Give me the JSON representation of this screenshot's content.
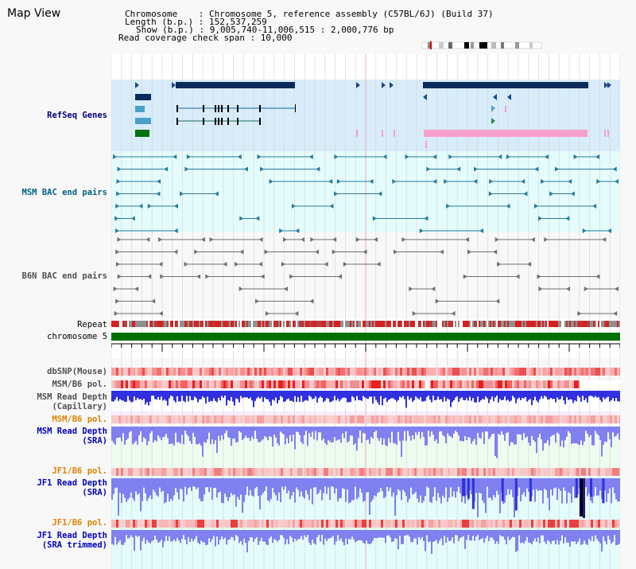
{
  "title": "Map View",
  "header": {
    "chromosome_line": "Chromosome    : Chromosome 5, reference assembly (C57BL/6J) (Build 37)",
    "length_line": "Length (b.p.) : 152,537,259",
    "show_line": "Show (b.p.) : 9,005,740-11,006,515 : 2,000,776 bp",
    "span_line": "Read coverage check span : 10,000"
  },
  "tracks": {
    "refseq": "RefSeq Genes",
    "msm_bac": "MSM BAC end pairs",
    "b6n_bac": "B6N BAC end pairs",
    "repeat": "Repeat",
    "chromosome": "chromosome 5",
    "dbsnp": "dbSNP(Mouse)",
    "msm_b6_pol_1": "MSM/B6 pol.",
    "msm_read_cap_1": "MSM Read Depth",
    "msm_read_cap_2": "(Capillary)",
    "msm_b6_pol_2": "MSM/B6 pol.",
    "msm_read_sra_1": "MSM Read Depth",
    "msm_read_sra_2": "(SRA)",
    "jf1_b6_pol_1": "JF1/B6 pol.",
    "jf1_read_sra_1": "JF1 Read Depth",
    "jf1_read_sra_2": "(SRA)",
    "jf1_b6_pol_2": "JF1/B6 pol.",
    "jf1_trim_1": "JF1 Read Depth",
    "jf1_trim_2": "(SRA trimmed)"
  },
  "axis": {
    "ticks": [
      "9200000",
      "9600000",
      "10000000",
      "10400000",
      "10800000"
    ]
  },
  "colors": {
    "refseq_bg": "#d8ecfa",
    "bac_bg": "#e4fcfc",
    "gene_dark": "#0a2a5a",
    "gene_pink": "#f7a0cc",
    "chromosome_green": "#007000",
    "depth_blue": "#3030e0",
    "depth_light": "#8080f0"
  }
}
